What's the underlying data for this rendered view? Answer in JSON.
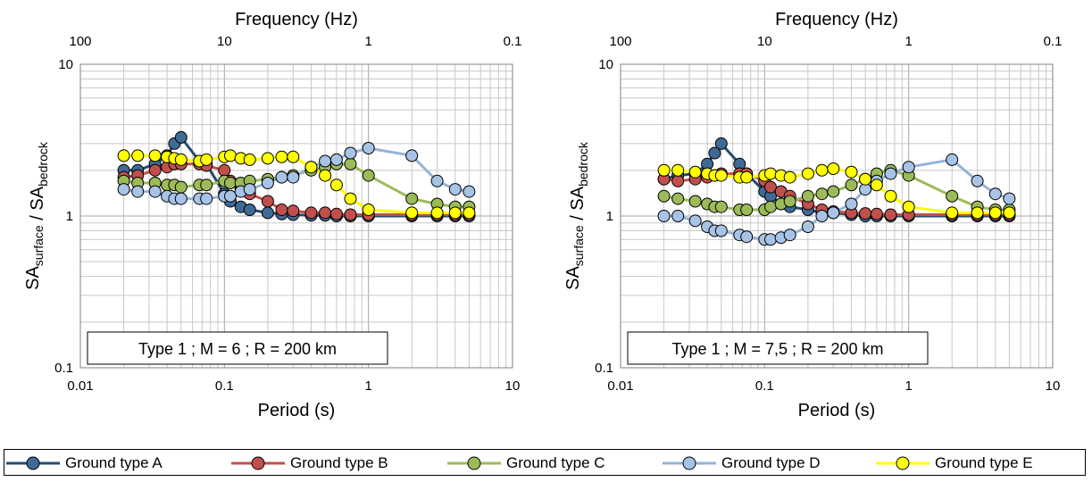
{
  "colors": {
    "Ground type A": "#254c70",
    "Ground type B": "#c0504d",
    "Ground type C": "#9bbb59",
    "Ground type D": "#95b3d7",
    "Ground type E": "#ffff00"
  },
  "legend": [
    {
      "label": "Ground type A",
      "color": "#254c70",
      "marker": "#3e6a96"
    },
    {
      "label": "Ground type B",
      "color": "#c0504d",
      "marker": "#c0504d"
    },
    {
      "label": "Ground type C",
      "color": "#9bbb59",
      "marker": "#9bbb59"
    },
    {
      "label": "Ground type D",
      "color": "#95b3d7",
      "marker": "#a7c3e6"
    },
    {
      "label": "Ground type E",
      "color": "#ffff00",
      "marker": "#ffff00"
    }
  ],
  "chart_data": [
    {
      "type": "line",
      "annotation": "Type 1 ; M = 6 ; R = 200 km",
      "xlabel": "Period (s)",
      "ylabel": "SA_surface / SA_bedrock",
      "top_axis_label": "Frequency (Hz)",
      "x_scale": "log",
      "y_scale": "log",
      "xlim": [
        0.01,
        10
      ],
      "ylim": [
        0.1,
        10
      ],
      "x_ticks": [
        "0.01",
        "0.1",
        "1",
        "10"
      ],
      "y_ticks": [
        "0.1",
        "1",
        "10"
      ],
      "top_ticks": [
        "100",
        "10",
        "1",
        "0.1"
      ],
      "grid": true,
      "x": [
        0.02,
        0.025,
        0.033,
        0.04,
        0.045,
        0.05,
        0.067,
        0.075,
        0.1,
        0.11,
        0.13,
        0.15,
        0.2,
        0.25,
        0.3,
        0.4,
        0.5,
        0.6,
        0.75,
        1.0,
        2.0,
        3.0,
        4.0,
        5.0
      ],
      "series": [
        {
          "name": "Ground type A",
          "values": [
            2.0,
            2.0,
            2.2,
            2.5,
            3.0,
            3.3,
            2.3,
            2.2,
            1.4,
            1.25,
            1.15,
            1.1,
            1.05,
            1.03,
            1.02,
            1.01,
            1.01,
            1.0,
            1.0,
            1.0,
            1.0,
            1.0,
            1.0,
            1.0
          ]
        },
        {
          "name": "Ground type B",
          "values": [
            1.8,
            1.85,
            2.0,
            2.1,
            2.2,
            2.2,
            2.2,
            2.15,
            2.0,
            1.7,
            1.5,
            1.4,
            1.25,
            1.1,
            1.08,
            1.05,
            1.05,
            1.03,
            1.02,
            1.02,
            1.02,
            1.02,
            1.02,
            1.02
          ]
        },
        {
          "name": "Ground type C",
          "values": [
            1.7,
            1.65,
            1.65,
            1.6,
            1.6,
            1.55,
            1.6,
            1.6,
            1.7,
            1.65,
            1.65,
            1.7,
            1.75,
            1.8,
            1.85,
            2.0,
            2.1,
            2.2,
            2.2,
            1.85,
            1.3,
            1.2,
            1.15,
            1.15
          ]
        },
        {
          "name": "Ground type D",
          "values": [
            1.5,
            1.45,
            1.45,
            1.35,
            1.3,
            1.3,
            1.3,
            1.3,
            1.35,
            1.35,
            1.45,
            1.5,
            1.65,
            1.8,
            1.8,
            2.1,
            2.3,
            2.35,
            2.6,
            2.8,
            2.5,
            1.7,
            1.5,
            1.45
          ]
        },
        {
          "name": "Ground type E",
          "values": [
            2.5,
            2.5,
            2.5,
            2.45,
            2.4,
            2.35,
            2.3,
            2.35,
            2.45,
            2.5,
            2.4,
            2.35,
            2.4,
            2.45,
            2.45,
            2.1,
            1.85,
            1.6,
            1.3,
            1.1,
            1.05,
            1.05,
            1.05,
            1.05
          ]
        }
      ]
    },
    {
      "type": "line",
      "annotation": "Type 1 ; M = 7,5 ; R = 200 km",
      "xlabel": "Period (s)",
      "ylabel": "SA_surface / SA_bedrock",
      "top_axis_label": "Frequency (Hz)",
      "x_scale": "log",
      "y_scale": "log",
      "xlim": [
        0.01,
        10
      ],
      "ylim": [
        0.1,
        10
      ],
      "x_ticks": [
        "0.01",
        "0.1",
        "1",
        "10"
      ],
      "y_ticks": [
        "0.1",
        "1",
        "10"
      ],
      "top_ticks": [
        "100",
        "10",
        "1",
        "0.1"
      ],
      "grid": true,
      "x": [
        0.02,
        0.025,
        0.033,
        0.04,
        0.045,
        0.05,
        0.067,
        0.075,
        0.1,
        0.11,
        0.13,
        0.15,
        0.2,
        0.25,
        0.3,
        0.4,
        0.5,
        0.6,
        0.75,
        1.0,
        2.0,
        3.0,
        4.0,
        5.0
      ],
      "series": [
        {
          "name": "Ground type A",
          "values": [
            1.75,
            1.85,
            1.9,
            2.2,
            2.6,
            3.0,
            2.2,
            1.9,
            1.45,
            1.35,
            1.2,
            1.15,
            1.1,
            1.05,
            1.05,
            1.02,
            1.0,
            1.0,
            1.0,
            1.0,
            1.0,
            1.0,
            1.0,
            1.0
          ]
        },
        {
          "name": "Ground type B",
          "values": [
            1.75,
            1.7,
            1.75,
            1.8,
            1.85,
            1.9,
            1.9,
            1.9,
            1.7,
            1.55,
            1.45,
            1.35,
            1.2,
            1.1,
            1.07,
            1.05,
            1.04,
            1.03,
            1.02,
            1.02,
            1.02,
            1.02,
            1.02,
            1.02
          ]
        },
        {
          "name": "Ground type C",
          "values": [
            1.35,
            1.3,
            1.25,
            1.2,
            1.15,
            1.15,
            1.1,
            1.1,
            1.1,
            1.15,
            1.2,
            1.25,
            1.35,
            1.4,
            1.45,
            1.6,
            1.75,
            1.9,
            2.0,
            1.85,
            1.35,
            1.15,
            1.1,
            1.1
          ]
        },
        {
          "name": "Ground type D",
          "values": [
            1.0,
            1.0,
            0.93,
            0.85,
            0.8,
            0.8,
            0.75,
            0.73,
            0.7,
            0.7,
            0.72,
            0.75,
            0.85,
            1.0,
            1.05,
            1.2,
            1.5,
            1.7,
            1.9,
            2.1,
            2.35,
            1.7,
            1.4,
            1.3
          ]
        },
        {
          "name": "Ground type E",
          "values": [
            2.0,
            2.0,
            1.95,
            1.9,
            1.85,
            1.85,
            1.8,
            1.8,
            1.85,
            1.9,
            1.85,
            1.8,
            1.9,
            2.0,
            2.05,
            1.95,
            1.75,
            1.6,
            1.35,
            1.15,
            1.05,
            1.05,
            1.05,
            1.05
          ]
        }
      ]
    }
  ]
}
